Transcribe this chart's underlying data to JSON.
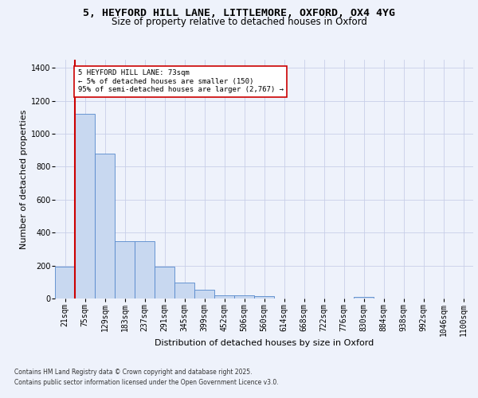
{
  "title_line1": "5, HEYFORD HILL LANE, LITTLEMORE, OXFORD, OX4 4YG",
  "title_line2": "Size of property relative to detached houses in Oxford",
  "xlabel": "Distribution of detached houses by size in Oxford",
  "ylabel": "Number of detached properties",
  "bin_labels": [
    "21sqm",
    "75sqm",
    "129sqm",
    "183sqm",
    "237sqm",
    "291sqm",
    "345sqm",
    "399sqm",
    "452sqm",
    "506sqm",
    "560sqm",
    "614sqm",
    "668sqm",
    "722sqm",
    "776sqm",
    "830sqm",
    "884sqm",
    "938sqm",
    "992sqm",
    "1046sqm",
    "1100sqm"
  ],
  "bar_values": [
    195,
    1120,
    880,
    350,
    350,
    195,
    95,
    55,
    20,
    20,
    15,
    0,
    0,
    0,
    0,
    10,
    0,
    0,
    0,
    0,
    0
  ],
  "bar_color": "#c8d8f0",
  "bar_edge_color": "#5588cc",
  "vline_x": 0.5,
  "vline_color": "#cc0000",
  "annotation_text": "5 HEYFORD HILL LANE: 73sqm\n← 5% of detached houses are smaller (150)\n95% of semi-detached houses are larger (2,767) →",
  "annotation_box_color": "#ffffff",
  "annotation_box_edge": "#cc0000",
  "ylim": [
    0,
    1450
  ],
  "yticks": [
    0,
    200,
    400,
    600,
    800,
    1000,
    1200,
    1400
  ],
  "footer_line1": "Contains HM Land Registry data © Crown copyright and database right 2025.",
  "footer_line2": "Contains public sector information licensed under the Open Government Licence v3.0.",
  "bg_color": "#eef2fb",
  "grid_color": "#c8cfe8",
  "title_fontsize": 9.5,
  "subtitle_fontsize": 8.5,
  "axis_label_fontsize": 8,
  "tick_fontsize": 7
}
